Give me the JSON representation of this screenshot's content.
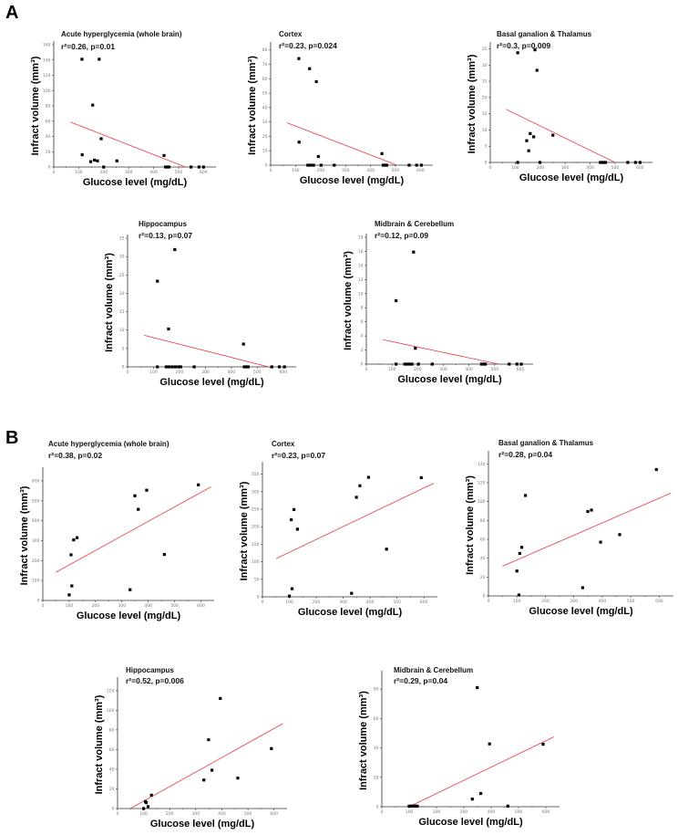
{
  "figure": {
    "panel_labels": [
      "A",
      "B"
    ],
    "colors": {
      "points": "#000000",
      "fit_line": "#e8393f",
      "axis": "#333333",
      "tick_label": "#777777"
    }
  },
  "chart_data": [
    {
      "type": "scatter",
      "group": "A",
      "title": "Acute hyperglycemia (whole brain)",
      "stat": "r²=0.26, p=0.01",
      "xlabel": "Glucose level (mg/dL)",
      "ylabel": "Infract volume (mm³)",
      "xlim": [
        0,
        650
      ],
      "ylim": [
        0,
        160
      ],
      "xticks": [
        0,
        100,
        200,
        300,
        400,
        500,
        600
      ],
      "yticks": [
        0,
        20,
        40,
        60,
        80,
        100,
        120,
        140,
        160
      ],
      "points": [
        [
          113,
          141
        ],
        [
          182,
          141
        ],
        [
          156,
          81
        ],
        [
          190,
          37
        ],
        [
          114,
          16
        ],
        [
          148,
          7
        ],
        [
          163,
          9
        ],
        [
          175,
          8
        ],
        [
          200,
          0
        ],
        [
          253,
          8
        ],
        [
          442,
          15
        ],
        [
          448,
          0
        ],
        [
          454,
          0
        ],
        [
          462,
          0
        ],
        [
          550,
          0
        ],
        [
          582,
          0
        ],
        [
          600,
          0
        ]
      ],
      "fit": [
        [
          68,
          58.6
        ],
        [
          527,
          0
        ]
      ]
    },
    {
      "type": "scatter",
      "group": "A",
      "title": "Cortex",
      "stat": "r²=0.23, p=0.024",
      "xlabel": "Glucose level (mg/dL)",
      "ylabel": "Infract volume (mm³)",
      "xlim": [
        0,
        650
      ],
      "ylim": [
        0,
        83
      ],
      "xticks": [
        0,
        100,
        200,
        300,
        400,
        500,
        600
      ],
      "yticks": [
        0,
        10,
        20,
        30,
        40,
        50,
        60,
        70,
        80
      ],
      "points": [
        [
          113,
          74
        ],
        [
          156,
          67
        ],
        [
          183,
          58
        ],
        [
          114,
          16
        ],
        [
          191,
          6
        ],
        [
          149,
          0
        ],
        [
          160,
          0
        ],
        [
          172,
          0
        ],
        [
          202,
          0
        ],
        [
          255,
          0
        ],
        [
          446,
          8
        ],
        [
          451,
          0
        ],
        [
          458,
          0
        ],
        [
          465,
          0
        ],
        [
          555,
          0
        ],
        [
          585,
          0
        ],
        [
          604,
          0
        ]
      ],
      "fit": [
        [
          65,
          29.5
        ],
        [
          506,
          0
        ]
      ]
    },
    {
      "type": "scatter",
      "group": "A",
      "title": "Basal ganalion & Thalamus",
      "stat": "r²=0.3, p=0.009",
      "xlabel": "Glucose level (mg/dL)",
      "ylabel": "Infract volume (mm³)",
      "xlim": [
        0,
        650
      ],
      "ylim": [
        0,
        36
      ],
      "xticks": [
        0,
        100,
        200,
        300,
        400,
        500,
        600
      ],
      "yticks": [
        0,
        5,
        10,
        15,
        20,
        25,
        30,
        35
      ],
      "points": [
        [
          110,
          33.8
        ],
        [
          179,
          34.7
        ],
        [
          187,
          28.4
        ],
        [
          146,
          6.7
        ],
        [
          160,
          8.9
        ],
        [
          174,
          7.9
        ],
        [
          154,
          3.6
        ],
        [
          251,
          8.4
        ],
        [
          110,
          0
        ],
        [
          199,
          0
        ],
        [
          441,
          0
        ],
        [
          448,
          0
        ],
        [
          455,
          0
        ],
        [
          462,
          0
        ],
        [
          551,
          0
        ],
        [
          582,
          0
        ],
        [
          600,
          0
        ]
      ],
      "fit": [
        [
          63,
          16.4
        ],
        [
          500,
          0
        ]
      ]
    },
    {
      "type": "scatter",
      "group": "A",
      "title": "Hippocampus",
      "stat": "r²=0.13, p=0.07",
      "xlabel": "Glucose level (mg/dL)",
      "ylabel": "Infract volume (mm³)",
      "xlim": [
        0,
        650
      ],
      "ylim": [
        0,
        35
      ],
      "xticks": [
        0,
        100,
        200,
        300,
        400,
        500,
        600
      ],
      "yticks": [
        0,
        5,
        10,
        15,
        20,
        25,
        30,
        35
      ],
      "points": [
        [
          115,
          23.3
        ],
        [
          182,
          31.9
        ],
        [
          158,
          10.3
        ],
        [
          447,
          6.2
        ],
        [
          115,
          0
        ],
        [
          149,
          0
        ],
        [
          160,
          0
        ],
        [
          172,
          0
        ],
        [
          184,
          0
        ],
        [
          196,
          0
        ],
        [
          205,
          0
        ],
        [
          257,
          0
        ],
        [
          450,
          0
        ],
        [
          457,
          0
        ],
        [
          465,
          0
        ],
        [
          556,
          0
        ],
        [
          585,
          0
        ],
        [
          605,
          0
        ]
      ],
      "fit": [
        [
          64,
          8.6
        ],
        [
          543,
          0
        ]
      ]
    },
    {
      "type": "scatter",
      "group": "A",
      "title": "Midbrain & Cerebellum",
      "stat": "r²=0.12, p=0.09",
      "xlabel": "Glucose level (mg/dL)",
      "ylabel": "Infract volume (mm³)",
      "xlim": [
        0,
        650
      ],
      "ylim": [
        0,
        18
      ],
      "xticks": [
        0,
        100,
        200,
        300,
        400,
        500,
        600
      ],
      "yticks": [
        0,
        2,
        4,
        6,
        8,
        10,
        12,
        14,
        16,
        18
      ],
      "points": [
        [
          116,
          9.0
        ],
        [
          184,
          15.9
        ],
        [
          191,
          2.25
        ],
        [
          116,
          0
        ],
        [
          150,
          0
        ],
        [
          159,
          0
        ],
        [
          169,
          0
        ],
        [
          178,
          0
        ],
        [
          203,
          0
        ],
        [
          257,
          0
        ],
        [
          449,
          0
        ],
        [
          456,
          0
        ],
        [
          464,
          0
        ],
        [
          557,
          0
        ],
        [
          587,
          0
        ],
        [
          604,
          0
        ]
      ],
      "fit": [
        [
          65,
          3.46
        ],
        [
          516,
          0
        ]
      ]
    },
    {
      "type": "scatter",
      "group": "B",
      "title": "Acute hyperglycemia (whole brain)",
      "stat": "r²=0.38, p=0.02",
      "xlabel": "Glucose level (mg/dL)",
      "ylabel": "Infract volume (mm³)",
      "xlim": [
        0,
        650
      ],
      "ylim": [
        0,
        650
      ],
      "xticks": [
        0,
        100,
        200,
        300,
        400,
        500,
        600
      ],
      "yticks": [
        0,
        100,
        200,
        300,
        400,
        500,
        600
      ],
      "points": [
        [
          100,
          28
        ],
        [
          110,
          73
        ],
        [
          107,
          229
        ],
        [
          117,
          304
        ],
        [
          130,
          315
        ],
        [
          331,
          54
        ],
        [
          349,
          525
        ],
        [
          362,
          457
        ],
        [
          394,
          553
        ],
        [
          461,
          231
        ],
        [
          590,
          580
        ]
      ],
      "fit": [
        [
          50,
          142
        ],
        [
          638,
          570
        ]
      ]
    },
    {
      "type": "scatter",
      "group": "B",
      "title": "Cortex",
      "stat": "r²=0.23, p=0.07",
      "xlabel": "Glucose level (mg/dL)",
      "ylabel": "Infract volume (mm³)",
      "xlim": [
        0,
        650
      ],
      "ylim": [
        0,
        375
      ],
      "xticks": [
        0,
        100,
        200,
        300,
        400,
        500,
        600
      ],
      "yticks": [
        0,
        50,
        100,
        150,
        200,
        250,
        300,
        350
      ],
      "points": [
        [
          100,
          2
        ],
        [
          110,
          23
        ],
        [
          107,
          220
        ],
        [
          117,
          249
        ],
        [
          130,
          193
        ],
        [
          331,
          10
        ],
        [
          349,
          284
        ],
        [
          362,
          317
        ],
        [
          394,
          341
        ],
        [
          461,
          136
        ],
        [
          590,
          340
        ]
      ],
      "fit": [
        [
          51,
          109
        ],
        [
          636,
          324
        ]
      ]
    },
    {
      "type": "scatter",
      "group": "B",
      "title": "Basal ganalion & Thalamus",
      "stat": "r²=0.28, p=0.04",
      "xlabel": "Glucose level (mg/dL)",
      "ylabel": "Infract volume (mm³)",
      "xlim": [
        0,
        650
      ],
      "ylim": [
        0,
        150
      ],
      "xticks": [
        0,
        100,
        200,
        300,
        400,
        500,
        600
      ],
      "yticks": [
        0,
        20,
        40,
        60,
        80,
        100,
        120,
        140
      ],
      "points": [
        [
          100,
          26.4
        ],
        [
          107,
          1
        ],
        [
          110,
          45
        ],
        [
          117,
          51.5
        ],
        [
          130,
          106.5
        ],
        [
          331,
          8.7
        ],
        [
          349,
          89.5
        ],
        [
          362,
          91
        ],
        [
          394,
          57
        ],
        [
          461,
          65
        ],
        [
          590,
          134
        ]
      ],
      "fit": [
        [
          49,
          31.5
        ],
        [
          641,
          109
        ]
      ]
    },
    {
      "type": "scatter",
      "group": "B",
      "title": "Hippocampus",
      "stat": "r²=0.52, p=0.006",
      "xlabel": "Glucose level (mg/dL)",
      "ylabel": "Infract volume (mm³)",
      "xlim": [
        0,
        650
      ],
      "ylim": [
        0,
        130
      ],
      "xticks": [
        0,
        100,
        200,
        300,
        400,
        500,
        600
      ],
      "yticks": [
        0,
        20,
        40,
        60,
        80,
        100,
        120
      ],
      "points": [
        [
          100,
          0
        ],
        [
          107,
          7
        ],
        [
          110,
          6
        ],
        [
          117,
          2
        ],
        [
          130,
          13.6
        ],
        [
          331,
          29
        ],
        [
          349,
          70
        ],
        [
          362,
          39
        ],
        [
          394,
          112
        ],
        [
          461,
          31
        ],
        [
          590,
          61
        ]
      ],
      "fit": [
        [
          49,
          0
        ],
        [
          634,
          86.5
        ]
      ]
    },
    {
      "type": "scatter",
      "group": "B",
      "title": "Midbrain & Cerebellum",
      "stat": "r²=0.29, p=0.04",
      "xlabel": "Glucose level (mg/dL)",
      "ylabel": "Infract volume (mm³)",
      "xlim": [
        0,
        650
      ],
      "ylim": [
        0,
        90
      ],
      "xticks": [
        0,
        100,
        200,
        300,
        400,
        500,
        600
      ],
      "yticks": [
        0,
        20,
        40,
        60,
        80
      ],
      "points": [
        [
          100,
          0.4
        ],
        [
          108,
          0.4
        ],
        [
          114,
          0.4
        ],
        [
          121,
          0.4
        ],
        [
          130,
          0.4
        ],
        [
          331,
          5.2
        ],
        [
          349,
          81
        ],
        [
          362,
          9
        ],
        [
          394,
          42.7
        ],
        [
          461,
          0.4
        ],
        [
          590,
          42.5
        ]
      ],
      "fit": [
        [
          100,
          0
        ],
        [
          629,
          47.5
        ]
      ]
    }
  ]
}
